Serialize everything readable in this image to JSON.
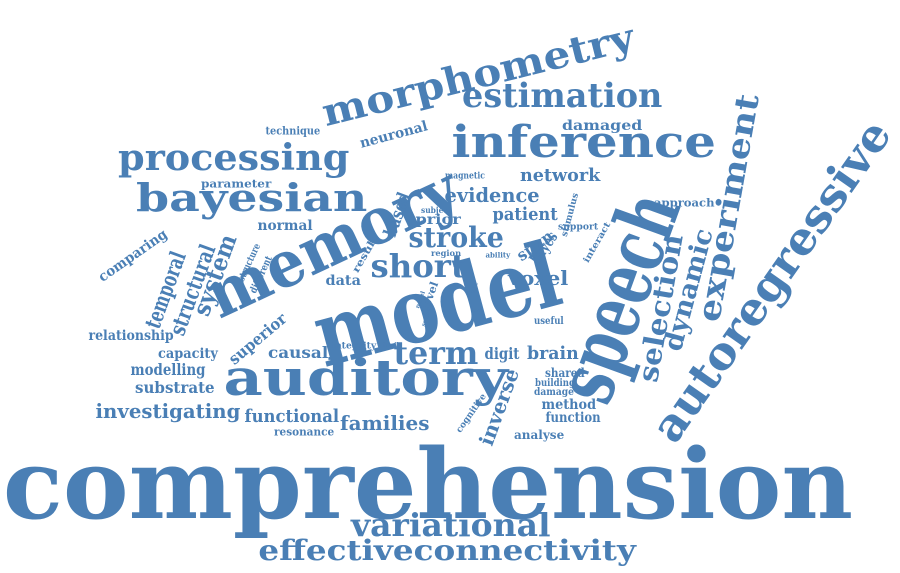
{
  "colors": {
    "text": "#4a7fb5",
    "background": "#ffffff"
  },
  "words": [
    "comprehension",
    "model",
    "speech",
    "memory",
    "auditory",
    "autoregressive",
    "morphometry",
    "inference",
    "processing",
    "bayesian",
    "estimation",
    "experiment",
    "variational",
    "effectiveconnectivity",
    "short",
    "term",
    "stroke",
    "selection",
    "dynamic",
    "system",
    "structural",
    "temporal",
    "investigating",
    "families",
    "functional",
    "inverse",
    "evidence",
    "network",
    "patient",
    "voxel",
    "brain",
    "digit",
    "causal",
    "superior",
    "capacity",
    "modelling",
    "substrate",
    "relationship",
    "comparing",
    "normal",
    "neuronal",
    "damaged",
    "technique",
    "parameter",
    "based",
    "prior",
    "span",
    "bayes",
    "data",
    "method",
    "function",
    "analyse",
    "resonance",
    "integrity",
    "shared",
    "building",
    "damage",
    "cognitive",
    "approach",
    "support",
    "magnetic",
    "subject",
    "result",
    "region",
    "ability",
    "interact",
    "stimulus",
    "structure",
    "different",
    "level",
    "useful",
    "family",
    "novel",
    "sound",
    "test",
    "age"
  ]
}
